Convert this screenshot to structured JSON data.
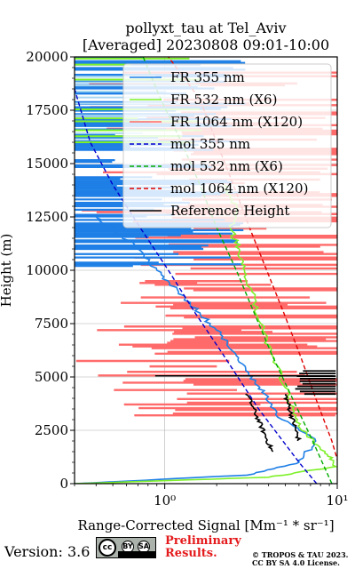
{
  "header": {
    "title_line1": "pollyxt_tau at Tel_Aviv",
    "title_line2": "[Averaged] 20230808 09:01-10:00"
  },
  "footer": {
    "version": "Version: 3.6",
    "preliminary_line1": "Preliminary",
    "preliminary_line2": "Results.",
    "copyright_line1": "© TROPOS & TAU 2023.",
    "copyright_line2": "CC BY SA 4.0 License.",
    "cc_badge": {
      "cc": "cc",
      "by": "BY",
      "sa": "SA"
    }
  },
  "chart_data": {
    "type": "line",
    "xlabel": "Range-Corrected Signal [Mm⁻¹ * sr⁻¹]",
    "ylabel": "Height (m)",
    "xscale": "log",
    "xlim": [
      0.3,
      10
    ],
    "ylim": [
      0,
      20000
    ],
    "xticks": [
      {
        "value": 1,
        "label": "10⁰"
      },
      {
        "value": 10,
        "label": "10¹"
      }
    ],
    "yticks": [
      0,
      2500,
      5000,
      7500,
      10000,
      12500,
      15000,
      17500,
      20000
    ],
    "grid": true,
    "legend_position": "top-right",
    "colors": {
      "fr355": "#1e7fe6",
      "fr532": "#7ef02a",
      "fr1064": "#ff6b6b",
      "mol355": "#0000cc",
      "mol532": "#00aa00",
      "mol1064": "#dd0000",
      "ref": "#000000"
    },
    "series": [
      {
        "name": "FR 355 nm",
        "key": "fr355",
        "x": [
          0.3,
          3.0,
          6.0,
          7.5,
          4.8,
          3.8,
          3.2,
          2.6,
          2.1,
          1.6,
          1.2,
          0.9,
          0.7,
          0.5,
          0.4
        ],
        "y": [
          0,
          400,
          1000,
          2000,
          3000,
          4200,
          5000,
          6000,
          7000,
          8000,
          9000,
          10000,
          11000,
          12000,
          12500
        ]
      },
      {
        "name": "FR 532 nm (X6)",
        "key": "fr532",
        "x": [
          0.3,
          4.0,
          9.8,
          8.5,
          6.2,
          5.5,
          5.0,
          4.2,
          3.6,
          3.2,
          2.9,
          2.7,
          2.4,
          2.6,
          2.2
        ],
        "y": [
          0,
          300,
          800,
          1500,
          2500,
          3500,
          4500,
          6000,
          7500,
          9000,
          10000,
          11000,
          12000,
          13000,
          14000
        ]
      },
      {
        "name": "FR 1064 nm (X120)",
        "key": "fr1064",
        "x": [],
        "y": []
      },
      {
        "name": "mol 355 nm",
        "key": "mol355",
        "dashed": true,
        "x": [
          7.6,
          6.0,
          3.5,
          2.2,
          1.5,
          1.05,
          0.72,
          0.5,
          0.37,
          0.3
        ],
        "y": [
          0,
          1000,
          3500,
          6000,
          8000,
          10000,
          12000,
          14000,
          16000,
          18500
        ]
      },
      {
        "name": "mol 532 nm (X6)",
        "key": "mol532",
        "dashed": true,
        "x": [
          9.3,
          7.2,
          5.5,
          4.2,
          3.3,
          2.6,
          2.0,
          1.6,
          1.25,
          0.95,
          0.75
        ],
        "y": [
          0,
          2000,
          4000,
          6000,
          8000,
          10000,
          12000,
          14000,
          16000,
          18000,
          20000
        ]
      },
      {
        "name": "mol 1064 nm (X120)",
        "key": "mol1064",
        "dashed": true,
        "x": [
          11,
          9.3,
          7.5,
          6.1,
          4.9,
          3.9,
          3.1,
          2.5,
          2.0,
          1.6,
          1.3,
          1.05
        ],
        "y": [
          0,
          2000,
          4000,
          6000,
          8000,
          10000,
          12000,
          14000,
          16000,
          18000,
          19000,
          20000
        ]
      },
      {
        "name": "Reference Height",
        "key": "ref",
        "x": [],
        "y": []
      }
    ]
  }
}
